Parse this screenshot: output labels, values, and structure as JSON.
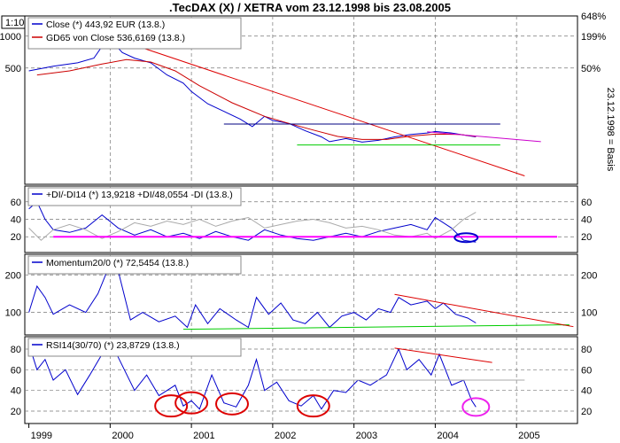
{
  "title": ".TecDAX (X) / XETRA vom 23.12.1998 bis 23.08.2005",
  "corner_label": "1:10",
  "side_label": "23.12.1998 = Basis",
  "x_labels": [
    "1999",
    "2000",
    "2001",
    "2002",
    "2003",
    "2004",
    "2005"
  ],
  "chart_data": [
    {
      "type": "line",
      "panel": "price",
      "y_scale": "log",
      "ytick_left": [
        "1000",
        "500"
      ],
      "ytick_right": [
        "648%",
        "199%",
        "50%"
      ],
      "series": [
        {
          "name": "Close (*) 443,92 EUR (13.8.)",
          "color": "#0000cc",
          "points": [
            [
              1999.0,
              470
            ],
            [
              1999.3,
              520
            ],
            [
              1999.6,
              560
            ],
            [
              1999.8,
              620
            ],
            [
              1999.9,
              800
            ],
            [
              2000.0,
              930
            ],
            [
              2000.15,
              700
            ],
            [
              2000.3,
              620
            ],
            [
              2000.5,
              560
            ],
            [
              2000.7,
              430
            ],
            [
              2000.9,
              360
            ],
            [
              2001.0,
              300
            ],
            [
              2001.2,
              230
            ],
            [
              2001.4,
              195
            ],
            [
              2001.6,
              165
            ],
            [
              2001.75,
              140
            ],
            [
              2001.9,
              175
            ],
            [
              2002.0,
              160
            ],
            [
              2002.2,
              150
            ],
            [
              2002.4,
              128
            ],
            [
              2002.6,
              112
            ],
            [
              2002.7,
              101
            ],
            [
              2002.9,
              108
            ],
            [
              2003.1,
              100
            ],
            [
              2003.3,
              104
            ],
            [
              2003.5,
              112
            ],
            [
              2003.7,
              118
            ],
            [
              2003.9,
              122
            ],
            [
              2004.0,
              126
            ],
            [
              2004.2,
              122
            ],
            [
              2004.4,
              115
            ],
            [
              2004.5,
              112
            ]
          ]
        },
        {
          "name": "GD65 von Close 536,6169 (13.8.)",
          "color": "#cc0000",
          "points": [
            [
              1999.1,
              430
            ],
            [
              1999.5,
              470
            ],
            [
              1999.9,
              545
            ],
            [
              2000.2,
              600
            ],
            [
              2000.5,
              570
            ],
            [
              2000.8,
              470
            ],
            [
              2001.1,
              340
            ],
            [
              2001.5,
              235
            ],
            [
              2001.9,
              175
            ],
            [
              2002.2,
              150
            ],
            [
              2002.5,
              130
            ],
            [
              2002.8,
              113
            ],
            [
              2003.1,
              106
            ],
            [
              2003.4,
              106
            ],
            [
              2003.7,
              114
            ],
            [
              2004.0,
              119
            ],
            [
              2004.3,
              118
            ],
            [
              2004.5,
              113
            ]
          ]
        }
      ]
    },
    {
      "type": "line",
      "panel": "dmi",
      "ytick_left": [
        "60",
        "40",
        "20"
      ],
      "ytick_right": [
        "60",
        "40",
        "20"
      ],
      "series": [
        {
          "name": "+DI/-DI14 (*) 13,9218 +DI/48,0554 -DI (13.8.)",
          "color": "#0000cc",
          "points": [
            [
              1999.0,
              52
            ],
            [
              1999.1,
              60
            ],
            [
              1999.2,
              40
            ],
            [
              1999.3,
              28
            ],
            [
              1999.5,
              25
            ],
            [
              1999.7,
              30
            ],
            [
              1999.9,
              45
            ],
            [
              2000.1,
              30
            ],
            [
              2000.3,
              22
            ],
            [
              2000.5,
              28
            ],
            [
              2000.7,
              20
            ],
            [
              2000.9,
              24
            ],
            [
              2001.1,
              18
            ],
            [
              2001.3,
              26
            ],
            [
              2001.5,
              20
            ],
            [
              2001.7,
              16
            ],
            [
              2001.9,
              28
            ],
            [
              2002.1,
              22
            ],
            [
              2002.3,
              18
            ],
            [
              2002.5,
              16
            ],
            [
              2002.7,
              20
            ],
            [
              2002.9,
              24
            ],
            [
              2003.1,
              20
            ],
            [
              2003.3,
              26
            ],
            [
              2003.5,
              30
            ],
            [
              2003.7,
              34
            ],
            [
              2003.9,
              28
            ],
            [
              2004.0,
              42
            ],
            [
              2004.2,
              30
            ],
            [
              2004.35,
              16
            ],
            [
              2004.5,
              14
            ]
          ]
        },
        {
          "name": "",
          "color": "#aaaaaa",
          "points": [
            [
              1999.0,
              30
            ],
            [
              1999.15,
              16
            ],
            [
              1999.3,
              28
            ],
            [
              1999.5,
              34
            ],
            [
              1999.7,
              28
            ],
            [
              1999.9,
              18
            ],
            [
              2000.1,
              26
            ],
            [
              2000.3,
              36
            ],
            [
              2000.5,
              32
            ],
            [
              2000.7,
              38
            ],
            [
              2000.9,
              34
            ],
            [
              2001.1,
              40
            ],
            [
              2001.3,
              32
            ],
            [
              2001.5,
              38
            ],
            [
              2001.7,
              42
            ],
            [
              2001.9,
              30
            ],
            [
              2002.1,
              34
            ],
            [
              2002.3,
              38
            ],
            [
              2002.5,
              40
            ],
            [
              2002.7,
              36
            ],
            [
              2002.9,
              30
            ],
            [
              2003.1,
              32
            ],
            [
              2003.3,
              28
            ],
            [
              2003.5,
              22
            ],
            [
              2003.7,
              20
            ],
            [
              2003.9,
              24
            ],
            [
              2004.0,
              18
            ],
            [
              2004.2,
              28
            ],
            [
              2004.35,
              40
            ],
            [
              2004.5,
              48
            ]
          ]
        }
      ]
    },
    {
      "type": "line",
      "panel": "momentum",
      "ytick_left": [
        "200",
        "100"
      ],
      "ytick_right": [
        "200",
        "100"
      ],
      "series": [
        {
          "name": "Momentum20/0 (*) 72,5454 (13.8.)",
          "color": "#0000cc",
          "points": [
            [
              1999.0,
              100
            ],
            [
              1999.1,
              170
            ],
            [
              1999.2,
              140
            ],
            [
              1999.3,
              95
            ],
            [
              1999.5,
              120
            ],
            [
              1999.7,
              100
            ],
            [
              1999.85,
              150
            ],
            [
              2000.0,
              230
            ],
            [
              2000.1,
              210
            ],
            [
              2000.25,
              80
            ],
            [
              2000.4,
              100
            ],
            [
              2000.6,
              75
            ],
            [
              2000.8,
              90
            ],
            [
              2000.95,
              60
            ],
            [
              2001.05,
              120
            ],
            [
              2001.2,
              70
            ],
            [
              2001.35,
              110
            ],
            [
              2001.55,
              80
            ],
            [
              2001.7,
              60
            ],
            [
              2001.8,
              140
            ],
            [
              2001.95,
              95
            ],
            [
              2002.1,
              125
            ],
            [
              2002.25,
              80
            ],
            [
              2002.4,
              70
            ],
            [
              2002.55,
              100
            ],
            [
              2002.7,
              60
            ],
            [
              2002.85,
              90
            ],
            [
              2003.0,
              100
            ],
            [
              2003.15,
              80
            ],
            [
              2003.3,
              110
            ],
            [
              2003.45,
              100
            ],
            [
              2003.55,
              140
            ],
            [
              2003.7,
              120
            ],
            [
              2003.9,
              130
            ],
            [
              2004.0,
              110
            ],
            [
              2004.1,
              125
            ],
            [
              2004.25,
              95
            ],
            [
              2004.4,
              85
            ],
            [
              2004.5,
              72
            ]
          ]
        }
      ]
    },
    {
      "type": "line",
      "panel": "rsi",
      "ytick_left": [
        "80",
        "60",
        "40",
        "20"
      ],
      "ytick_right": [
        "80",
        "60",
        "40",
        "20"
      ],
      "series": [
        {
          "name": "RSI14(30/70) (*) 23,8729 (13.8.)",
          "color": "#0000cc",
          "points": [
            [
              1999.0,
              85
            ],
            [
              1999.1,
              60
            ],
            [
              1999.2,
              70
            ],
            [
              1999.3,
              50
            ],
            [
              1999.45,
              60
            ],
            [
              1999.6,
              36
            ],
            [
              1999.75,
              55
            ],
            [
              1999.9,
              75
            ],
            [
              2000.0,
              88
            ],
            [
              2000.1,
              72
            ],
            [
              2000.3,
              40
            ],
            [
              2000.45,
              55
            ],
            [
              2000.6,
              35
            ],
            [
              2000.8,
              45
            ],
            [
              2000.9,
              25
            ],
            [
              2001.0,
              30
            ],
            [
              2001.1,
              22
            ],
            [
              2001.25,
              55
            ],
            [
              2001.4,
              28
            ],
            [
              2001.55,
              24
            ],
            [
              2001.7,
              45
            ],
            [
              2001.8,
              70
            ],
            [
              2001.9,
              40
            ],
            [
              2002.05,
              48
            ],
            [
              2002.2,
              30
            ],
            [
              2002.35,
              25
            ],
            [
              2002.5,
              35
            ],
            [
              2002.6,
              22
            ],
            [
              2002.75,
              40
            ],
            [
              2002.9,
              38
            ],
            [
              2003.05,
              50
            ],
            [
              2003.2,
              45
            ],
            [
              2003.4,
              55
            ],
            [
              2003.55,
              80
            ],
            [
              2003.65,
              60
            ],
            [
              2003.8,
              70
            ],
            [
              2003.95,
              55
            ],
            [
              2004.05,
              75
            ],
            [
              2004.2,
              45
            ],
            [
              2004.35,
              50
            ],
            [
              2004.45,
              30
            ],
            [
              2004.5,
              24
            ]
          ]
        }
      ]
    }
  ]
}
